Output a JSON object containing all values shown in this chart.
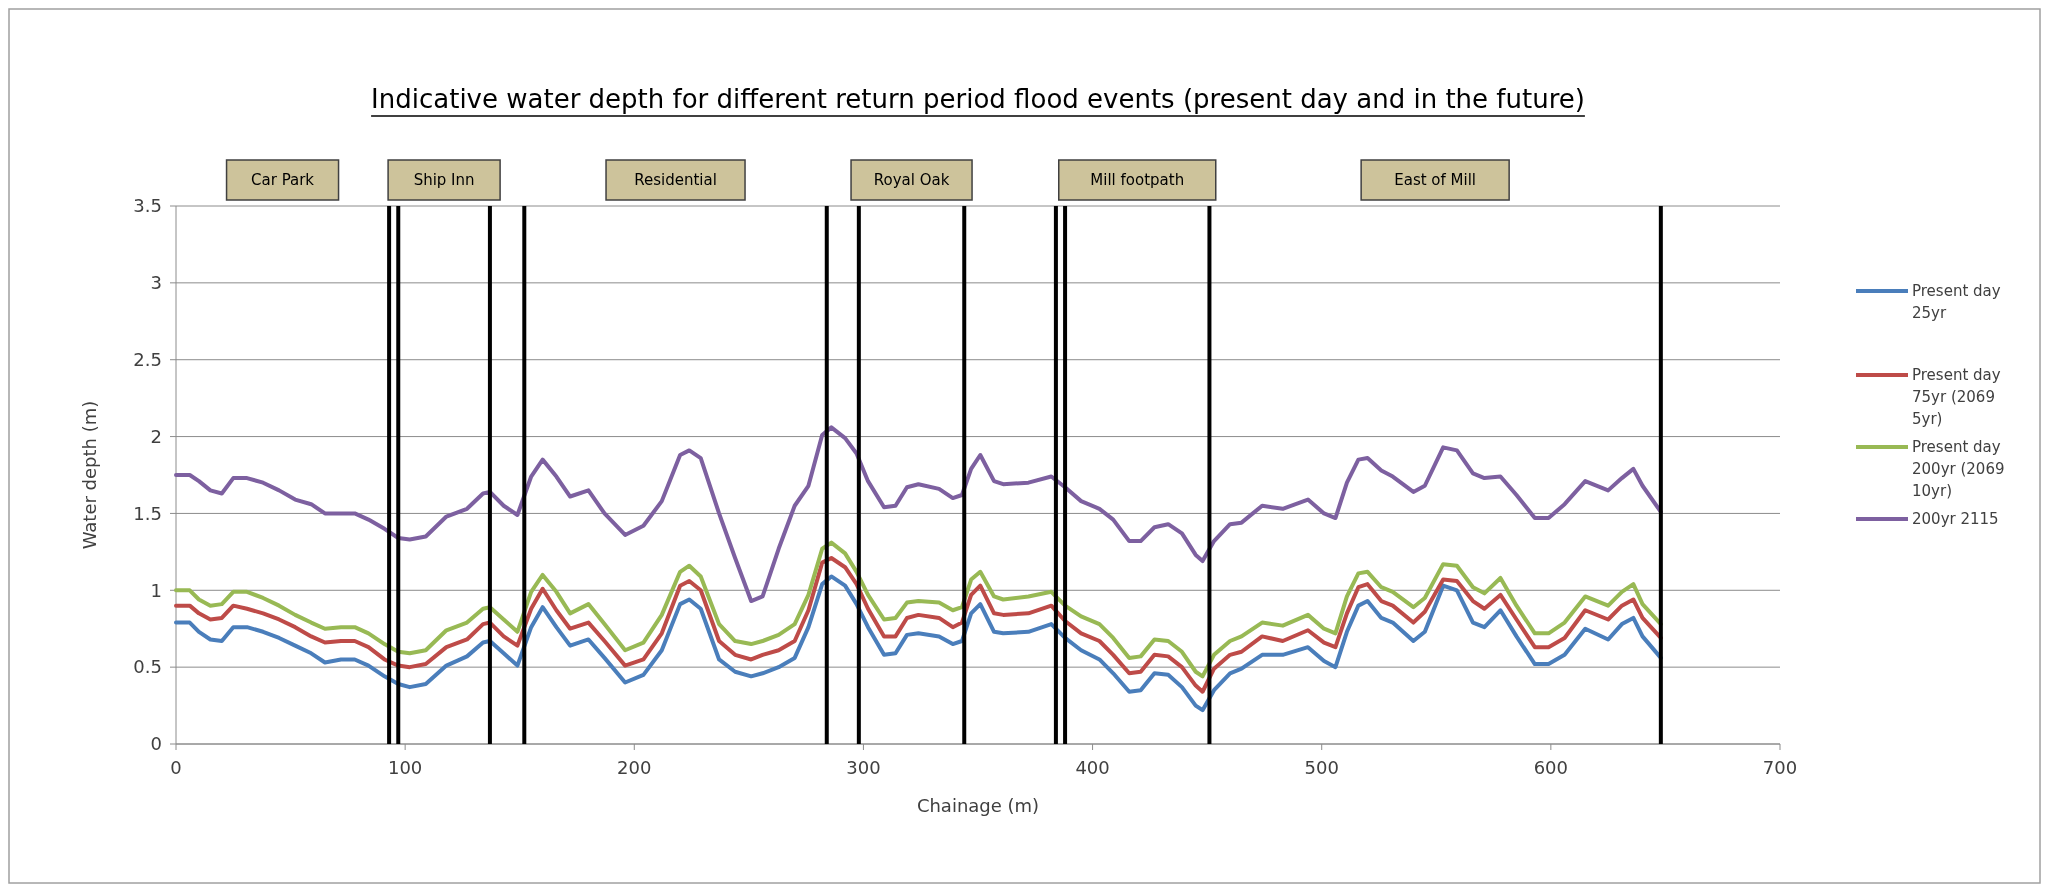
{
  "chart_data": {
    "type": "line",
    "title": "Indicative water depth for different return period flood events (present day and in the future)",
    "xlabel": "Chainage (m)",
    "ylabel": "Water depth (m)",
    "x": [
      0,
      6,
      10,
      15,
      20,
      25,
      31,
      38,
      45,
      52,
      59,
      65,
      72,
      78,
      84,
      91,
      97,
      102,
      109,
      118,
      127,
      134,
      137,
      143,
      149,
      155,
      160,
      166,
      172,
      180,
      187,
      196,
      204,
      212,
      220,
      224,
      229,
      237,
      244,
      251,
      256,
      263,
      270,
      276,
      282,
      286,
      292,
      297,
      302,
      309,
      314,
      319,
      324,
      333,
      339,
      343,
      347,
      351,
      357,
      361,
      372,
      382,
      388,
      395,
      403,
      409,
      416,
      421,
      427,
      433,
      439,
      445,
      448,
      453,
      460,
      465,
      474,
      483,
      494,
      501,
      506,
      511,
      516,
      520,
      526,
      531,
      540,
      545,
      553,
      559,
      566,
      571,
      578,
      585,
      593,
      599,
      606,
      615,
      625,
      631,
      636,
      640,
      648
    ],
    "series": [
      {
        "name": "Present day 25yr",
        "color": "#4a7ebb",
        "values": [
          0.79,
          0.79,
          0.73,
          0.68,
          0.67,
          0.76,
          0.76,
          0.73,
          0.69,
          0.64,
          0.59,
          0.53,
          0.55,
          0.55,
          0.51,
          0.44,
          0.39,
          0.37,
          0.39,
          0.51,
          0.57,
          0.66,
          0.67,
          0.59,
          0.51,
          0.76,
          0.89,
          0.76,
          0.64,
          0.68,
          0.56,
          0.4,
          0.45,
          0.61,
          0.91,
          0.94,
          0.88,
          0.55,
          0.47,
          0.44,
          0.46,
          0.5,
          0.56,
          0.76,
          1.04,
          1.09,
          1.03,
          0.91,
          0.76,
          0.58,
          0.59,
          0.71,
          0.72,
          0.7,
          0.65,
          0.67,
          0.85,
          0.91,
          0.73,
          0.72,
          0.73,
          0.78,
          0.69,
          0.61,
          0.55,
          0.46,
          0.34,
          0.35,
          0.46,
          0.45,
          0.37,
          0.25,
          0.22,
          0.35,
          0.46,
          0.49,
          0.58,
          0.58,
          0.63,
          0.54,
          0.5,
          0.73,
          0.9,
          0.93,
          0.82,
          0.79,
          0.67,
          0.73,
          1.03,
          1.0,
          0.79,
          0.76,
          0.87,
          0.7,
          0.52,
          0.52,
          0.58,
          0.75,
          0.68,
          0.78,
          0.82,
          0.7,
          0.56
        ]
      },
      {
        "name": "Present day 75yr (2069 5yr)",
        "color": "#be4b48",
        "values": [
          0.9,
          0.9,
          0.85,
          0.81,
          0.82,
          0.9,
          0.88,
          0.85,
          0.81,
          0.76,
          0.7,
          0.66,
          0.67,
          0.67,
          0.63,
          0.55,
          0.51,
          0.5,
          0.52,
          0.63,
          0.68,
          0.78,
          0.79,
          0.7,
          0.64,
          0.88,
          1.01,
          0.87,
          0.75,
          0.79,
          0.67,
          0.51,
          0.55,
          0.72,
          1.03,
          1.06,
          1.0,
          0.67,
          0.58,
          0.55,
          0.58,
          0.61,
          0.67,
          0.87,
          1.18,
          1.21,
          1.15,
          1.04,
          0.88,
          0.7,
          0.7,
          0.82,
          0.84,
          0.82,
          0.76,
          0.79,
          0.97,
          1.03,
          0.85,
          0.84,
          0.85,
          0.9,
          0.8,
          0.72,
          0.67,
          0.58,
          0.46,
          0.47,
          0.58,
          0.57,
          0.5,
          0.38,
          0.34,
          0.49,
          0.58,
          0.6,
          0.7,
          0.67,
          0.74,
          0.66,
          0.63,
          0.85,
          1.02,
          1.04,
          0.93,
          0.9,
          0.79,
          0.86,
          1.07,
          1.06,
          0.93,
          0.88,
          0.97,
          0.81,
          0.63,
          0.63,
          0.69,
          0.87,
          0.81,
          0.9,
          0.94,
          0.82,
          0.69
        ]
      },
      {
        "name": "Present day 200yr (2069 10yr)",
        "color": "#98b954",
        "values": [
          1.0,
          1.0,
          0.94,
          0.9,
          0.91,
          0.99,
          0.99,
          0.95,
          0.9,
          0.84,
          0.79,
          0.75,
          0.76,
          0.76,
          0.72,
          0.65,
          0.6,
          0.59,
          0.61,
          0.74,
          0.79,
          0.88,
          0.89,
          0.81,
          0.73,
          0.99,
          1.1,
          0.99,
          0.85,
          0.91,
          0.78,
          0.61,
          0.66,
          0.84,
          1.12,
          1.16,
          1.09,
          0.78,
          0.67,
          0.65,
          0.67,
          0.71,
          0.78,
          0.97,
          1.27,
          1.31,
          1.24,
          1.12,
          0.97,
          0.81,
          0.82,
          0.92,
          0.93,
          0.92,
          0.87,
          0.89,
          1.07,
          1.12,
          0.96,
          0.94,
          0.96,
          0.99,
          0.9,
          0.83,
          0.78,
          0.69,
          0.56,
          0.57,
          0.68,
          0.67,
          0.6,
          0.47,
          0.44,
          0.58,
          0.67,
          0.7,
          0.79,
          0.77,
          0.84,
          0.75,
          0.72,
          0.96,
          1.11,
          1.12,
          1.02,
          0.99,
          0.89,
          0.95,
          1.17,
          1.16,
          1.02,
          0.98,
          1.08,
          0.9,
          0.72,
          0.72,
          0.79,
          0.96,
          0.9,
          0.99,
          1.04,
          0.91,
          0.78
        ]
      },
      {
        "name": "200yr 2115",
        "color": "#7d60a0",
        "values": [
          1.75,
          1.75,
          1.71,
          1.65,
          1.63,
          1.73,
          1.73,
          1.7,
          1.65,
          1.59,
          1.56,
          1.5,
          1.5,
          1.5,
          1.46,
          1.4,
          1.34,
          1.33,
          1.35,
          1.48,
          1.53,
          1.63,
          1.64,
          1.55,
          1.49,
          1.74,
          1.85,
          1.74,
          1.61,
          1.65,
          1.5,
          1.36,
          1.42,
          1.58,
          1.88,
          1.91,
          1.86,
          1.5,
          1.21,
          0.93,
          0.96,
          1.27,
          1.55,
          1.68,
          2.01,
          2.06,
          1.99,
          1.89,
          1.71,
          1.54,
          1.55,
          1.67,
          1.69,
          1.66,
          1.6,
          1.62,
          1.79,
          1.88,
          1.71,
          1.69,
          1.7,
          1.74,
          1.67,
          1.58,
          1.53,
          1.46,
          1.32,
          1.32,
          1.41,
          1.43,
          1.37,
          1.23,
          1.19,
          1.32,
          1.43,
          1.44,
          1.55,
          1.53,
          1.59,
          1.5,
          1.47,
          1.7,
          1.85,
          1.86,
          1.78,
          1.74,
          1.64,
          1.68,
          1.93,
          1.91,
          1.76,
          1.73,
          1.74,
          1.62,
          1.47,
          1.47,
          1.56,
          1.71,
          1.65,
          1.73,
          1.79,
          1.68,
          1.51
        ]
      }
    ],
    "xlim": [
      0,
      700
    ],
    "xticks": [
      0,
      100,
      200,
      300,
      400,
      500,
      600,
      700
    ],
    "ylim": [
      0,
      3.5
    ],
    "yticks": [
      0,
      0.5,
      1,
      1.5,
      2,
      2.5,
      3,
      3.5
    ],
    "grid": "y",
    "legend": "right",
    "marker": "none",
    "line_style": "solid",
    "ref_lines": [
      {
        "axis": "x",
        "value": 93,
        "color": "#000000"
      },
      {
        "axis": "x",
        "value": 97,
        "color": "#000000"
      },
      {
        "axis": "x",
        "value": 137,
        "color": "#000000"
      },
      {
        "axis": "x",
        "value": 152,
        "color": "#000000"
      },
      {
        "axis": "x",
        "value": 284,
        "color": "#000000"
      },
      {
        "axis": "x",
        "value": 298,
        "color": "#000000"
      },
      {
        "axis": "x",
        "value": 344,
        "color": "#000000"
      },
      {
        "axis": "x",
        "value": 384,
        "color": "#000000"
      },
      {
        "axis": "x",
        "value": 388,
        "color": "#000000"
      },
      {
        "axis": "x",
        "value": 451,
        "color": "#000000"
      },
      {
        "axis": "x",
        "value": 648,
        "color": "#000000"
      }
    ],
    "annotations": [
      "Car Park",
      "Ship Inn",
      "Residential",
      "Royal Oak",
      "Mill footpath",
      "East of Mill"
    ]
  }
}
